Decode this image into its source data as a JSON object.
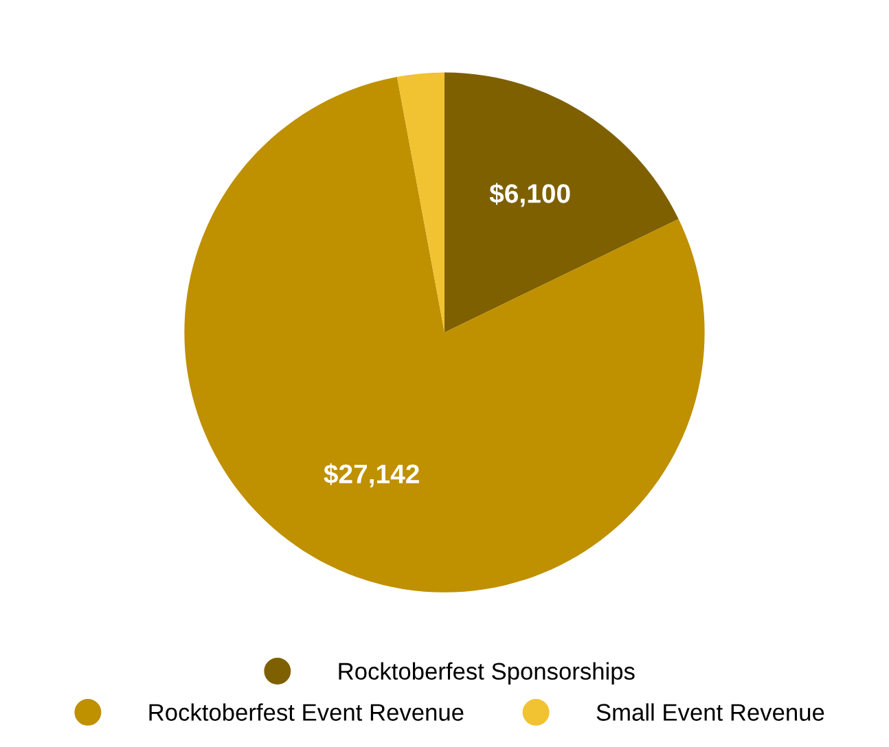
{
  "chart_data": {
    "type": "pie",
    "categories": [
      "Rocktoberfest Sponsorships",
      "Rocktoberfest Event Revenue",
      "Small Event Revenue"
    ],
    "values": [
      6100,
      27142,
      1000
    ],
    "colors": [
      "#7f6000",
      "#bf9000",
      "#f1c232"
    ],
    "value_labels": [
      "$6,100",
      "$27,142",
      null
    ],
    "legend": "bottom"
  }
}
